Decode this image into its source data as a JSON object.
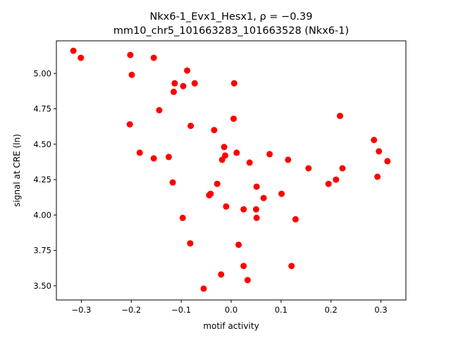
{
  "chart_data": {
    "type": "scatter",
    "title_line1": "Nkx6-1_Evx1_Hesx1, ρ = −0.39",
    "title_line2": "mm10_chr5_101663283_101663528 (Nkx6-1)",
    "xlabel": "motif activity",
    "ylabel": "signal at CRE (ln)",
    "xlim": [
      -0.35,
      0.35
    ],
    "ylim": [
      3.4,
      5.23
    ],
    "xticks": [
      -0.3,
      -0.2,
      -0.1,
      0.0,
      0.1,
      0.2,
      0.3
    ],
    "xtick_labels": [
      "−0.3",
      "−0.2",
      "−0.1",
      "0.0",
      "0.1",
      "0.2",
      "0.3"
    ],
    "yticks": [
      3.5,
      3.75,
      4.0,
      4.25,
      4.5,
      4.75,
      5.0
    ],
    "ytick_labels": [
      "3.50",
      "3.75",
      "4.00",
      "4.25",
      "4.50",
      "4.75",
      "5.00"
    ],
    "grid": false,
    "legend": "none",
    "marker_color": "#ff0000",
    "points": [
      {
        "x": -0.316,
        "y": 5.16
      },
      {
        "x": -0.301,
        "y": 5.11
      },
      {
        "x": -0.202,
        "y": 5.13
      },
      {
        "x": -0.199,
        "y": 4.99
      },
      {
        "x": -0.155,
        "y": 5.11
      },
      {
        "x": -0.088,
        "y": 5.02
      },
      {
        "x": -0.113,
        "y": 4.93
      },
      {
        "x": -0.096,
        "y": 4.91
      },
      {
        "x": -0.073,
        "y": 4.93
      },
      {
        "x": -0.115,
        "y": 4.87
      },
      {
        "x": 0.006,
        "y": 4.93
      },
      {
        "x": -0.144,
        "y": 4.74
      },
      {
        "x": -0.203,
        "y": 4.64
      },
      {
        "x": -0.081,
        "y": 4.63
      },
      {
        "x": 0.005,
        "y": 4.68
      },
      {
        "x": -0.034,
        "y": 4.6
      },
      {
        "x": 0.218,
        "y": 4.7
      },
      {
        "x": 0.286,
        "y": 4.53
      },
      {
        "x": 0.296,
        "y": 4.45
      },
      {
        "x": -0.183,
        "y": 4.44
      },
      {
        "x": -0.155,
        "y": 4.4
      },
      {
        "x": -0.125,
        "y": 4.41
      },
      {
        "x": -0.014,
        "y": 4.48
      },
      {
        "x": -0.012,
        "y": 4.42
      },
      {
        "x": -0.018,
        "y": 4.39
      },
      {
        "x": 0.011,
        "y": 4.44
      },
      {
        "x": 0.037,
        "y": 4.37
      },
      {
        "x": 0.077,
        "y": 4.43
      },
      {
        "x": 0.114,
        "y": 4.39
      },
      {
        "x": 0.155,
        "y": 4.33
      },
      {
        "x": 0.223,
        "y": 4.33
      },
      {
        "x": 0.313,
        "y": 4.38
      },
      {
        "x": 0.293,
        "y": 4.27
      },
      {
        "x": 0.21,
        "y": 4.25
      },
      {
        "x": 0.195,
        "y": 4.22
      },
      {
        "x": -0.117,
        "y": 4.23
      },
      {
        "x": -0.028,
        "y": 4.22
      },
      {
        "x": -0.044,
        "y": 4.14
      },
      {
        "x": -0.041,
        "y": 4.15
      },
      {
        "x": 0.051,
        "y": 4.2
      },
      {
        "x": 0.065,
        "y": 4.12
      },
      {
        "x": 0.101,
        "y": 4.15
      },
      {
        "x": -0.01,
        "y": 4.06
      },
      {
        "x": 0.025,
        "y": 4.04
      },
      {
        "x": 0.05,
        "y": 4.04
      },
      {
        "x": -0.097,
        "y": 3.98
      },
      {
        "x": 0.051,
        "y": 3.98
      },
      {
        "x": 0.129,
        "y": 3.97
      },
      {
        "x": -0.082,
        "y": 3.8
      },
      {
        "x": 0.015,
        "y": 3.79
      },
      {
        "x": -0.02,
        "y": 3.58
      },
      {
        "x": 0.025,
        "y": 3.64
      },
      {
        "x": 0.121,
        "y": 3.64
      },
      {
        "x": 0.033,
        "y": 3.54
      },
      {
        "x": -0.055,
        "y": 3.48
      }
    ]
  }
}
